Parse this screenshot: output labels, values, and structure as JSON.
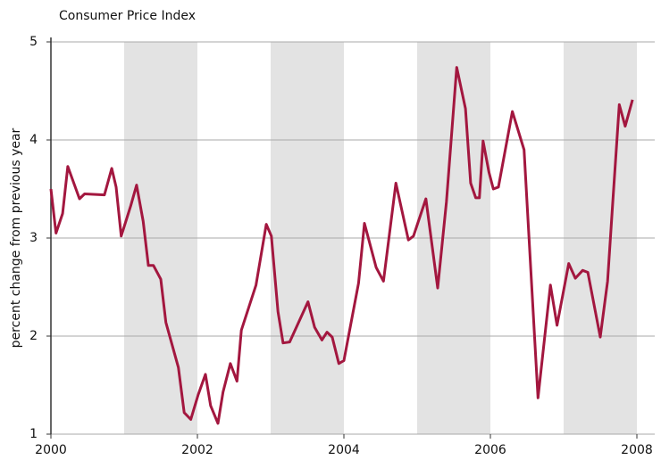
{
  "chart_data": {
    "type": "line",
    "title": "Consumer Price Index",
    "y_label": "percent change from previous year",
    "xlim": [
      2000,
      2008
    ],
    "xticks": [
      2000,
      2002,
      2004,
      2006,
      2008
    ],
    "ylim": [
      1,
      5
    ],
    "yticks": [
      1,
      2,
      3,
      4,
      5
    ],
    "grid": true,
    "shading_color": "#e3e3e3",
    "series": [
      {
        "name": "Consumer Price Index",
        "color": "#a3173f",
        "x": [
          2000.0,
          2000.07,
          2000.16,
          2000.23,
          2000.39,
          2000.46,
          2000.73,
          2000.83,
          2000.89,
          2000.96,
          2001.09,
          2001.17,
          2001.26,
          2001.33,
          2001.4,
          2001.5,
          2001.57,
          2001.74,
          2001.82,
          2001.91,
          2002.01,
          2002.11,
          2002.18,
          2002.28,
          2002.35,
          2002.45,
          2002.54,
          2002.6,
          2002.8,
          2002.94,
          2003.01,
          2003.1,
          2003.17,
          2003.26,
          2003.51,
          2003.6,
          2003.7,
          2003.77,
          2003.84,
          2003.93,
          2004.0,
          2004.2,
          2004.28,
          2004.44,
          2004.54,
          2004.71,
          2004.88,
          2004.95,
          2005.12,
          2005.28,
          2005.4,
          2005.54,
          2005.66,
          2005.73,
          2005.8,
          2005.85,
          2005.9,
          2005.98,
          2006.04,
          2006.11,
          2006.3,
          2006.46,
          2006.65,
          2006.82,
          2006.91,
          2007.07,
          2007.16,
          2007.26,
          2007.33,
          2007.5,
          2007.6,
          2007.67,
          2007.76,
          2007.84,
          2007.94
        ],
        "values": [
          3.5,
          3.05,
          3.25,
          3.73,
          3.4,
          3.45,
          3.44,
          3.71,
          3.52,
          3.02,
          3.33,
          3.54,
          3.17,
          2.72,
          2.72,
          2.58,
          2.14,
          1.68,
          1.22,
          1.15,
          1.4,
          1.61,
          1.29,
          1.11,
          1.43,
          1.72,
          1.54,
          2.06,
          2.52,
          3.14,
          3.02,
          2.25,
          1.93,
          1.94,
          2.35,
          2.09,
          1.96,
          2.04,
          1.99,
          1.72,
          1.75,
          2.54,
          3.15,
          2.7,
          2.56,
          3.56,
          2.98,
          3.02,
          3.4,
          2.49,
          3.37,
          4.74,
          4.32,
          3.56,
          3.41,
          3.41,
          3.99,
          3.67,
          3.5,
          3.52,
          4.29,
          3.9,
          1.37,
          2.52,
          2.11,
          2.74,
          2.59,
          2.67,
          2.65,
          1.99,
          2.56,
          3.35,
          4.36,
          4.14,
          4.41
        ]
      }
    ]
  }
}
